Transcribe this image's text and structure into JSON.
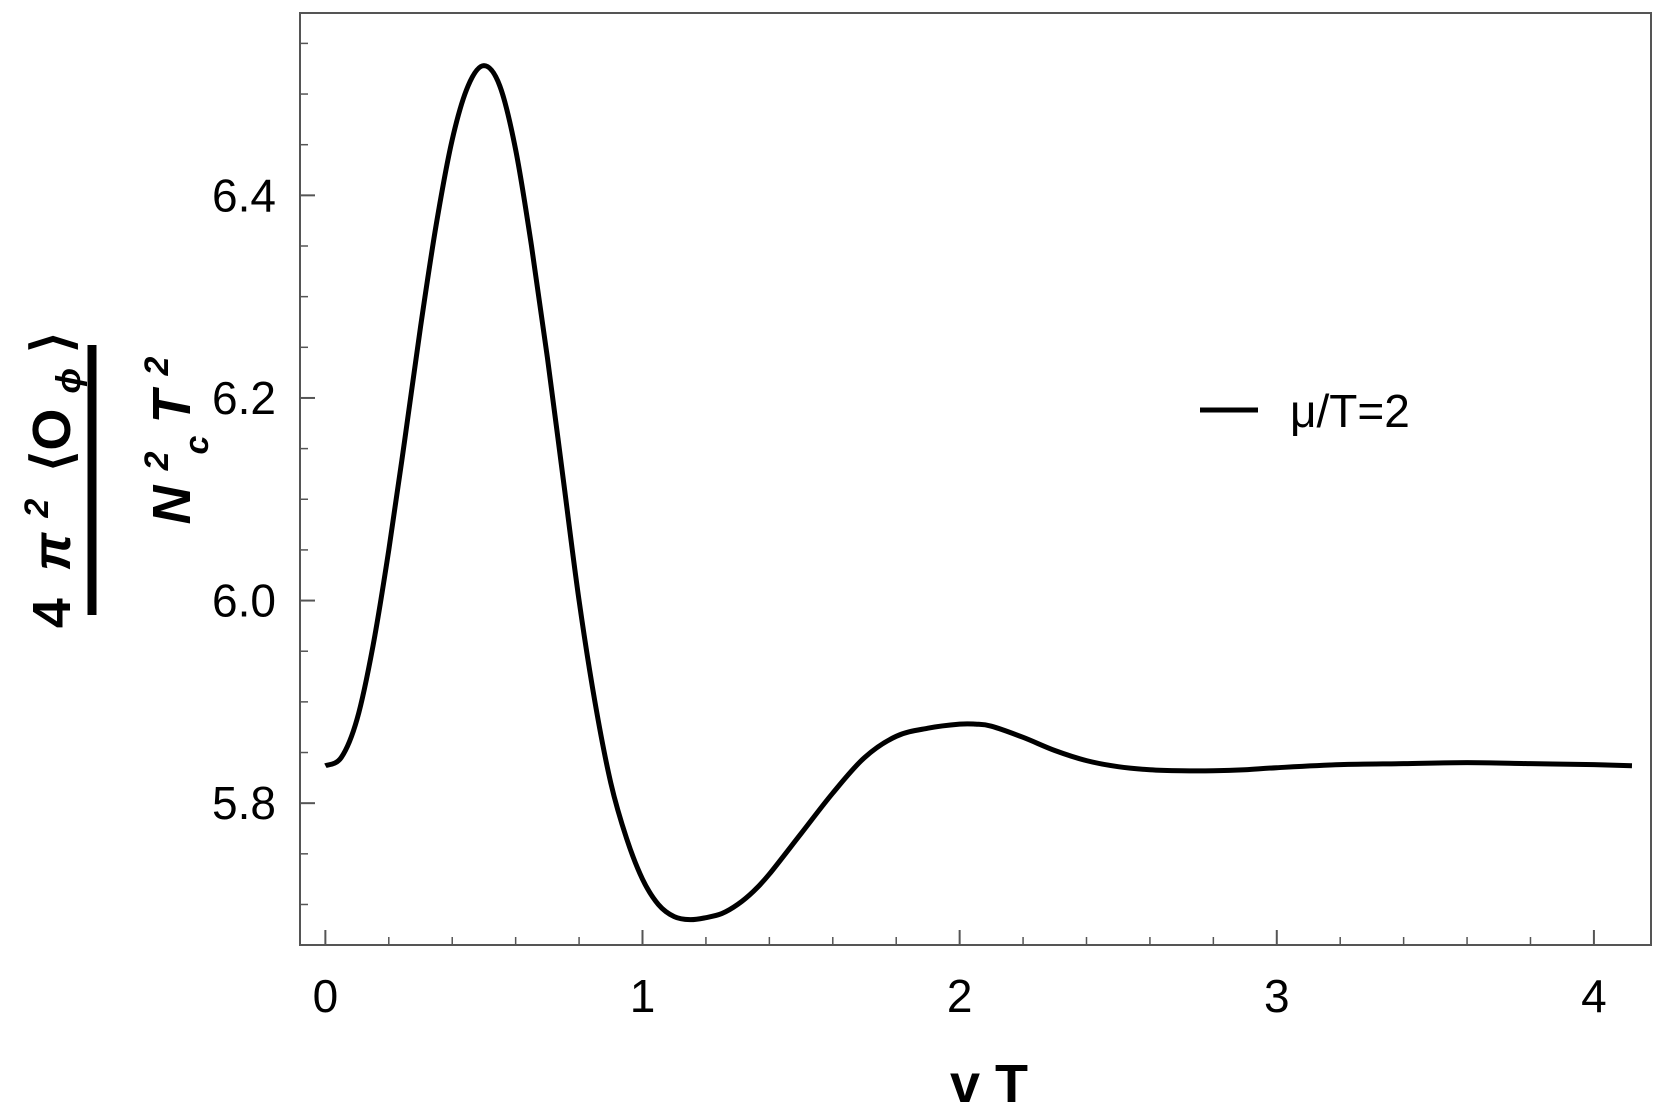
{
  "chart_data": {
    "type": "line",
    "xlabel": "v T",
    "ylabel": {
      "numerator_prefix": "4",
      "numerator_pi": "π",
      "numerator_pi_exp": "2",
      "numerator_op": "⟨O",
      "numerator_op_sub": "ϕ",
      "numerator_op_close": "⟩",
      "denominator_N": "N",
      "denominator_N_exp": "2",
      "denominator_N_sub": "c",
      "denominator_T": "T",
      "denominator_T_exp": "2"
    },
    "xlim": [
      -0.08,
      4.18
    ],
    "ylim": [
      5.66,
      6.58
    ],
    "x_ticks": [
      0,
      1,
      2,
      3,
      4
    ],
    "x_tick_labels": [
      "0",
      "1",
      "2",
      "3",
      "4"
    ],
    "y_ticks": [
      5.8,
      6.0,
      6.2,
      6.4
    ],
    "y_tick_labels": [
      "5.8",
      "6.0",
      "6.2",
      "6.4"
    ],
    "x_minor_step": 0.2,
    "y_minor_step": 0.05,
    "grid": false,
    "legend_position": "right-middle",
    "series": [
      {
        "name": "μ/T=2",
        "color": "#000000",
        "x": [
          0.0,
          0.05,
          0.1,
          0.15,
          0.2,
          0.25,
          0.3,
          0.35,
          0.4,
          0.45,
          0.5,
          0.55,
          0.6,
          0.65,
          0.7,
          0.75,
          0.8,
          0.85,
          0.9,
          0.95,
          1.0,
          1.05,
          1.1,
          1.15,
          1.2,
          1.25,
          1.3,
          1.35,
          1.4,
          1.5,
          1.6,
          1.7,
          1.8,
          1.9,
          2.0,
          2.05,
          2.1,
          2.2,
          2.3,
          2.4,
          2.5,
          2.6,
          2.7,
          2.8,
          2.9,
          3.0,
          3.2,
          3.4,
          3.6,
          3.8,
          4.0,
          4.12
        ],
        "y": [
          5.837,
          5.845,
          5.883,
          5.955,
          6.05,
          6.158,
          6.27,
          6.372,
          6.455,
          6.508,
          6.528,
          6.508,
          6.445,
          6.35,
          6.24,
          6.12,
          6.0,
          5.9,
          5.82,
          5.765,
          5.725,
          5.7,
          5.688,
          5.685,
          5.687,
          5.691,
          5.7,
          5.713,
          5.73,
          5.77,
          5.81,
          5.845,
          5.866,
          5.874,
          5.878,
          5.878,
          5.876,
          5.865,
          5.852,
          5.842,
          5.836,
          5.833,
          5.832,
          5.832,
          5.833,
          5.835,
          5.838,
          5.839,
          5.84,
          5.839,
          5.838,
          5.837
        ]
      }
    ]
  }
}
